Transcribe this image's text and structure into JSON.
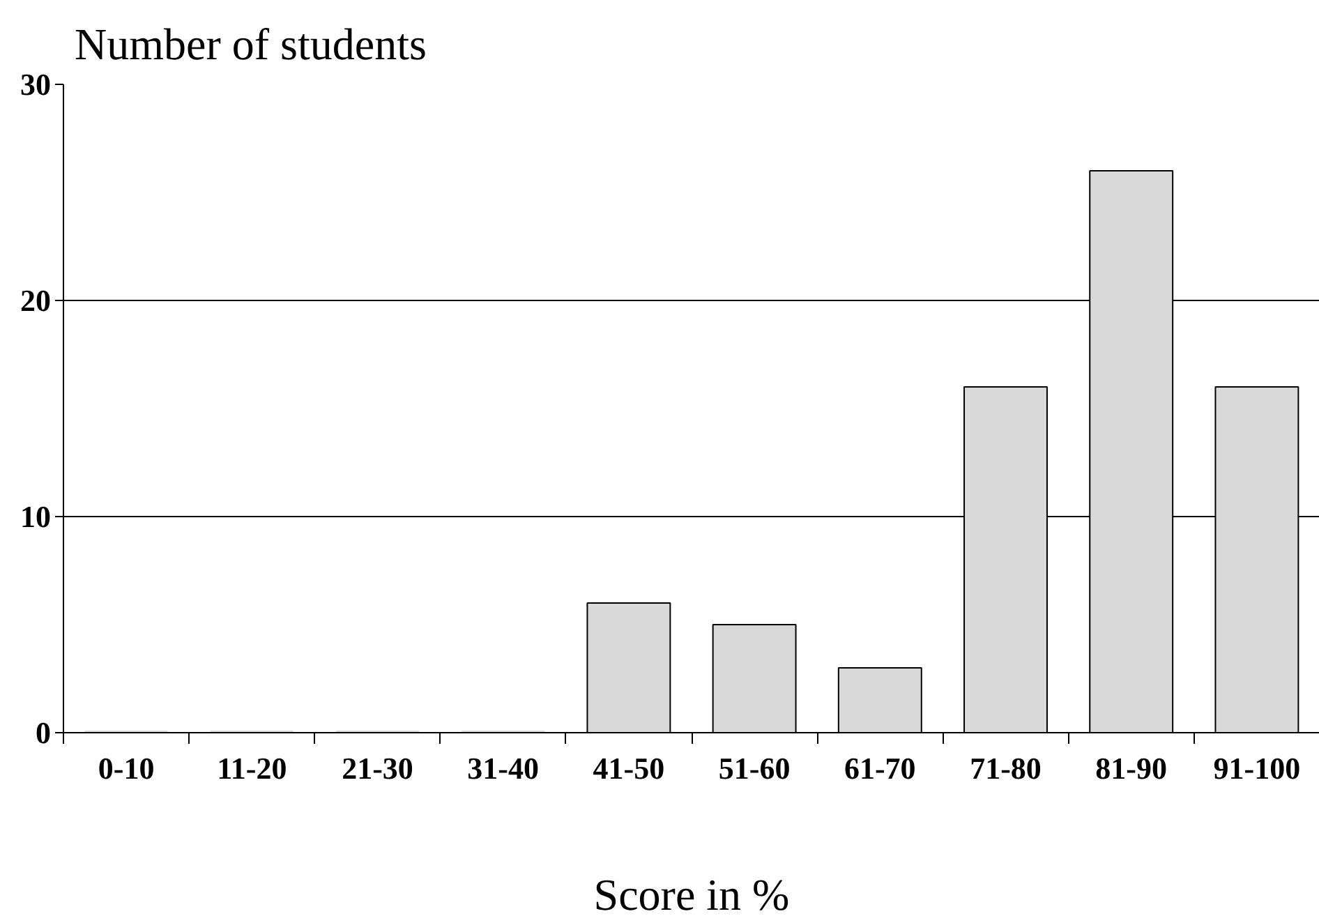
{
  "chart_data": {
    "type": "bar",
    "ylabel": "Number of students",
    "xlabel": "Score in %",
    "categories": [
      "0-10",
      "11-20",
      "21-30",
      "31-40",
      "41-50",
      "51-60",
      "61-70",
      "71-80",
      "81-90",
      "91-100"
    ],
    "values": [
      0,
      0,
      0,
      0,
      6,
      5,
      3,
      16,
      26,
      16
    ],
    "color": "#d9d9d9",
    "ylim": [
      0,
      30
    ],
    "yticks": [
      0,
      10,
      20,
      30
    ],
    "grid": "y"
  }
}
